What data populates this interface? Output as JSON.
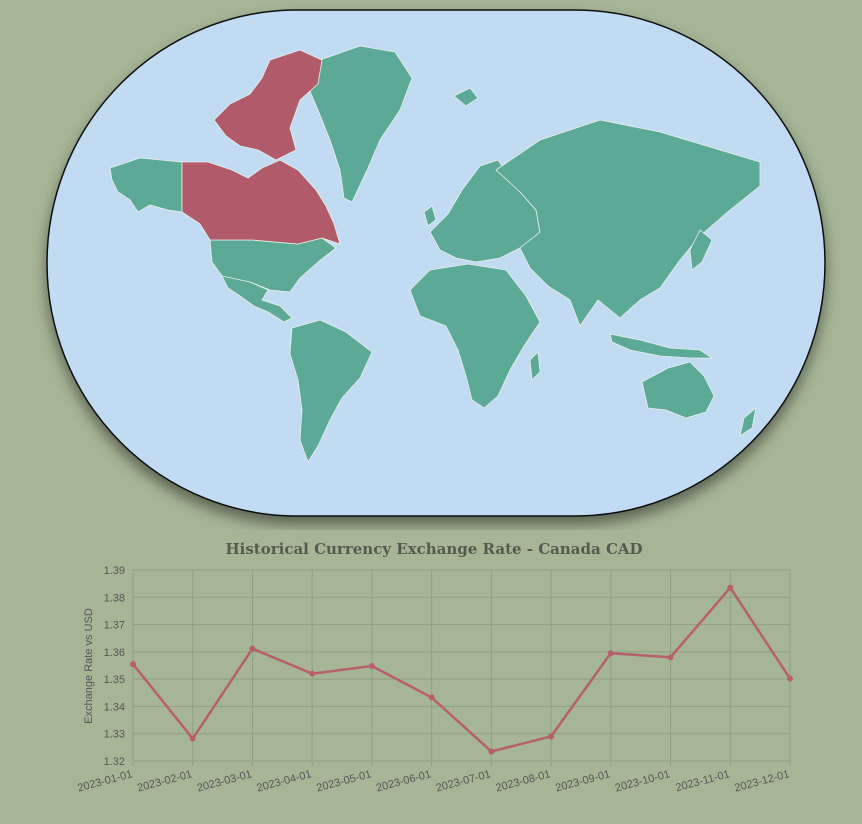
{
  "map": {
    "highlighted_country": "Canada",
    "colors": {
      "ocean": "#c1dbf3",
      "land": "#5caa95",
      "highlight": "#b05a6a",
      "border": "#e8f0ea",
      "frame": "#111111"
    }
  },
  "page_colors": {
    "background": "#a6b596",
    "line": "#b7606c",
    "grid": "#8f9f82"
  },
  "chart_data": {
    "type": "line",
    "title": "Historical Currency Exchange Rate - Canada CAD",
    "xlabel": "",
    "ylabel": "Exchange Rate vs USD",
    "ylim": [
      1.32,
      1.39
    ],
    "yticks": [
      "1.32",
      "1.33",
      "1.34",
      "1.35",
      "1.36",
      "1.37",
      "1.38",
      "1.39"
    ],
    "x": [
      "2023-01-01",
      "2023-02-01",
      "2023-03-01",
      "2023-04-01",
      "2023-05-01",
      "2023-06-01",
      "2023-07-01",
      "2023-08-01",
      "2023-09-01",
      "2023-10-01",
      "2023-11-01",
      "2023-12-01"
    ],
    "series": [
      {
        "values": [
          1.3555,
          1.3282,
          1.3612,
          1.352,
          1.3548,
          1.3433,
          1.3235,
          1.329,
          1.3595,
          1.358,
          1.3835,
          1.3502
        ]
      }
    ],
    "grid": true,
    "legend": "none"
  }
}
